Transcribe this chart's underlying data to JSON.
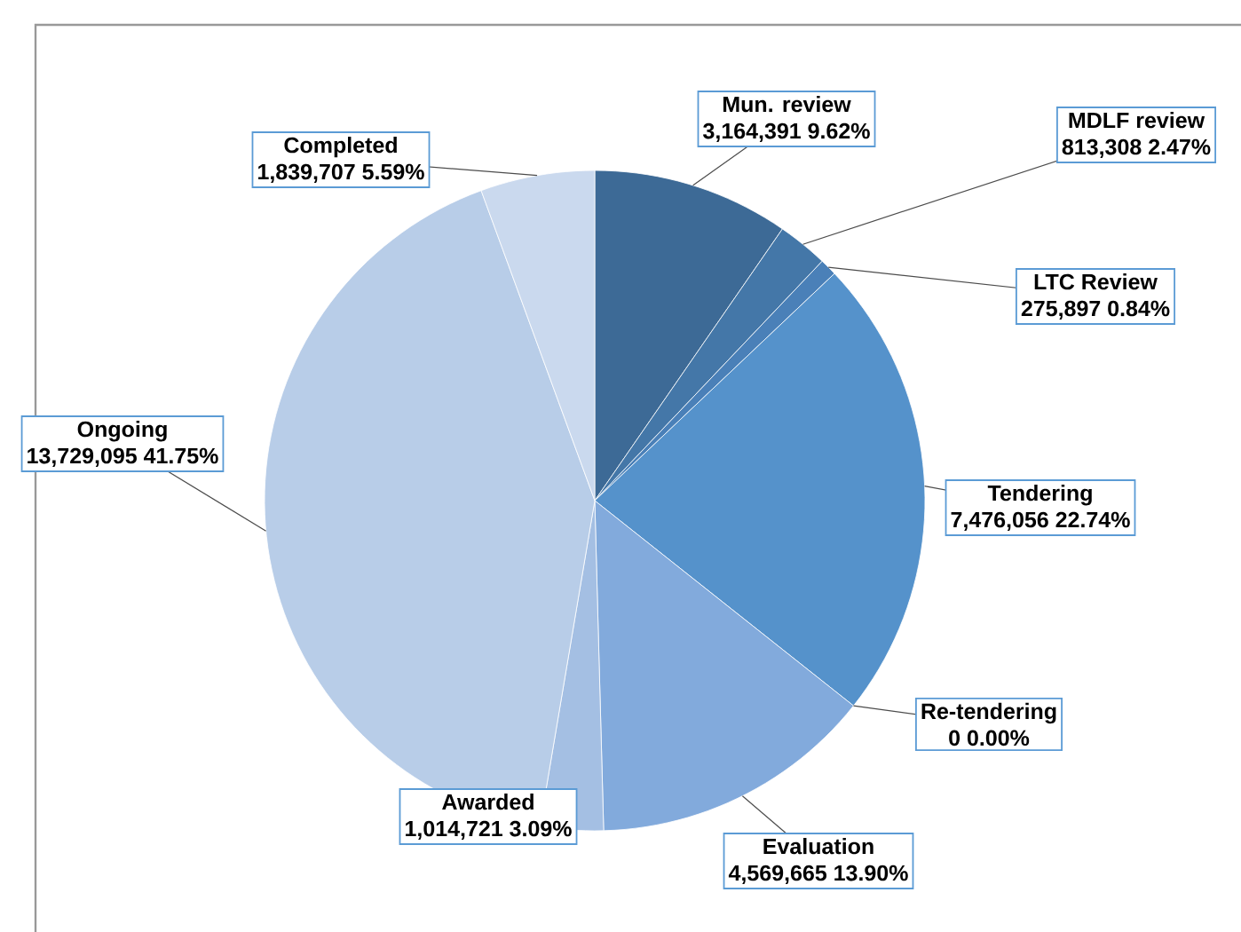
{
  "chart_data": {
    "type": "pie",
    "categories": [
      "Mun. review",
      "MDLF review",
      "LTC Review",
      "Tendering",
      "Re-tendering",
      "Evaluation",
      "Awarded",
      "Ongoing",
      "Completed"
    ],
    "values": [
      9.62,
      2.47,
      0.84,
      22.74,
      0.0,
      13.9,
      3.09,
      41.75,
      5.59
    ],
    "colors": [
      "#3d6a96",
      "#4477a8",
      "#4a80b8",
      "#5592cb",
      "#6a9ed6",
      "#82aadc",
      "#a4bfe3",
      "#b8cde8",
      "#cad9ee"
    ],
    "value_labels": [
      "3,164,391 9.62%",
      "813,308 2.47%",
      "275,897 0.84%",
      "7,476,056 22.74%",
      "0 0.00%",
      "4,569,665 13.90%",
      "1,014,721 3.09%",
      "13,729,095 41.75%",
      "1,839,707 5.59%"
    ]
  }
}
